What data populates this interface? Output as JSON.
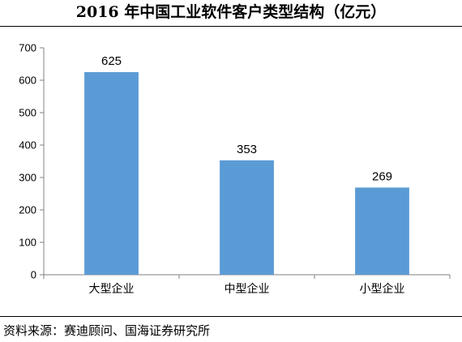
{
  "title": "2016 年中国工业软件客户类型结构（亿元）",
  "source": "资料来源：赛迪顾问、国海证券研究所",
  "colors": {
    "bar": "#5B9BD5",
    "axis": "#808080",
    "text": "#000000"
  },
  "chart_data": {
    "type": "bar",
    "title": "2016 年中国工业软件客户类型结构（亿元）",
    "xlabel": "",
    "ylabel": "",
    "categories": [
      "大型企业",
      "中型企业",
      "小型企业"
    ],
    "values": [
      625,
      353,
      269
    ],
    "data_labels": [
      "625",
      "353",
      "269"
    ],
    "ylim": [
      0,
      700
    ],
    "yticks": [
      0,
      100,
      200,
      300,
      400,
      500,
      600,
      700
    ],
    "grid": false,
    "legend": "none"
  }
}
